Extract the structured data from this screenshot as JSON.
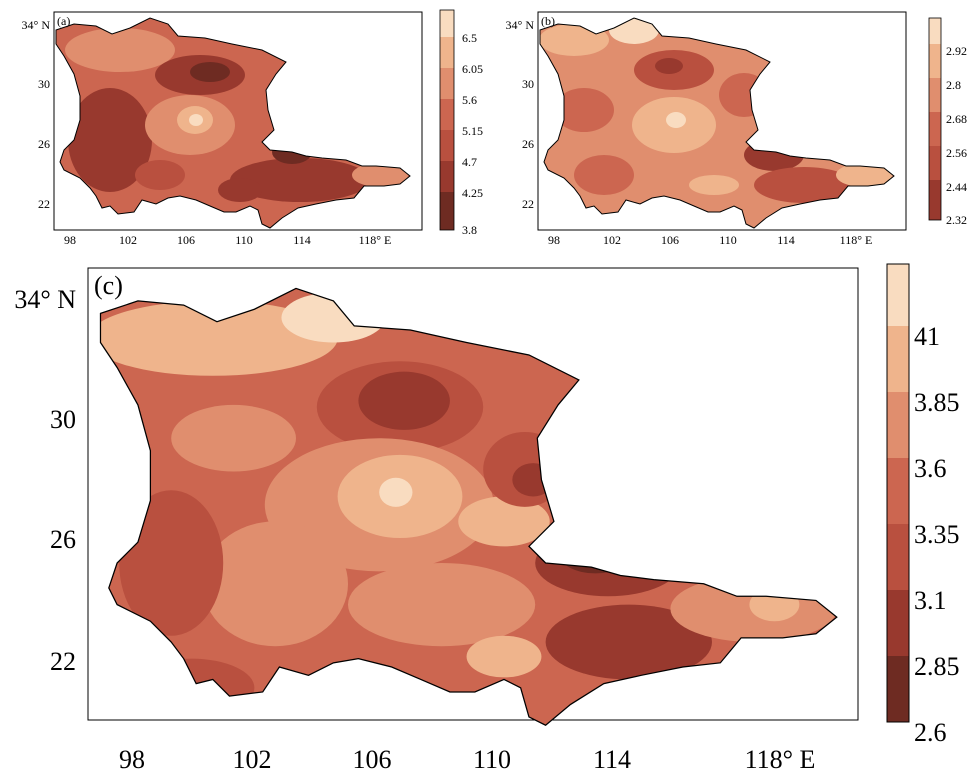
{
  "panels": [
    {
      "id": "a",
      "label": "(a)",
      "y_ticks": [
        "34° N",
        "30",
        "26",
        "22"
      ],
      "x_ticks": [
        "98",
        "102",
        "106",
        "110",
        "114",
        "118° E"
      ],
      "colorbar_labels": [
        "6.5",
        "6.05",
        "5.6",
        "5.15",
        "4.7",
        "4.25",
        "3.8"
      ]
    },
    {
      "id": "b",
      "label": "(b)",
      "y_ticks": [
        "34° N",
        "30",
        "26",
        "22"
      ],
      "x_ticks": [
        "98",
        "102",
        "106",
        "110",
        "114",
        "118° E"
      ],
      "colorbar_labels": [
        "2.92",
        "2.8",
        "2.68",
        "2.56",
        "2.44",
        "2.32"
      ]
    },
    {
      "id": "c",
      "label": "(c)",
      "y_ticks": [
        "34° N",
        "30",
        "26",
        "22"
      ],
      "x_ticks": [
        "98",
        "102",
        "106",
        "110",
        "114",
        "118° E"
      ],
      "colorbar_labels": [
        "41",
        "3.85",
        "3.6",
        "3.35",
        "3.1",
        "2.85",
        "2.6"
      ]
    }
  ],
  "palette": {
    "darkest": "#6e2b22",
    "dark": "#98392e",
    "mid_dark": "#b9503f",
    "mid": "#cc6650",
    "mid_light": "#e08e6e",
    "light": "#efb48c",
    "lightest": "#f9dcc0"
  }
}
